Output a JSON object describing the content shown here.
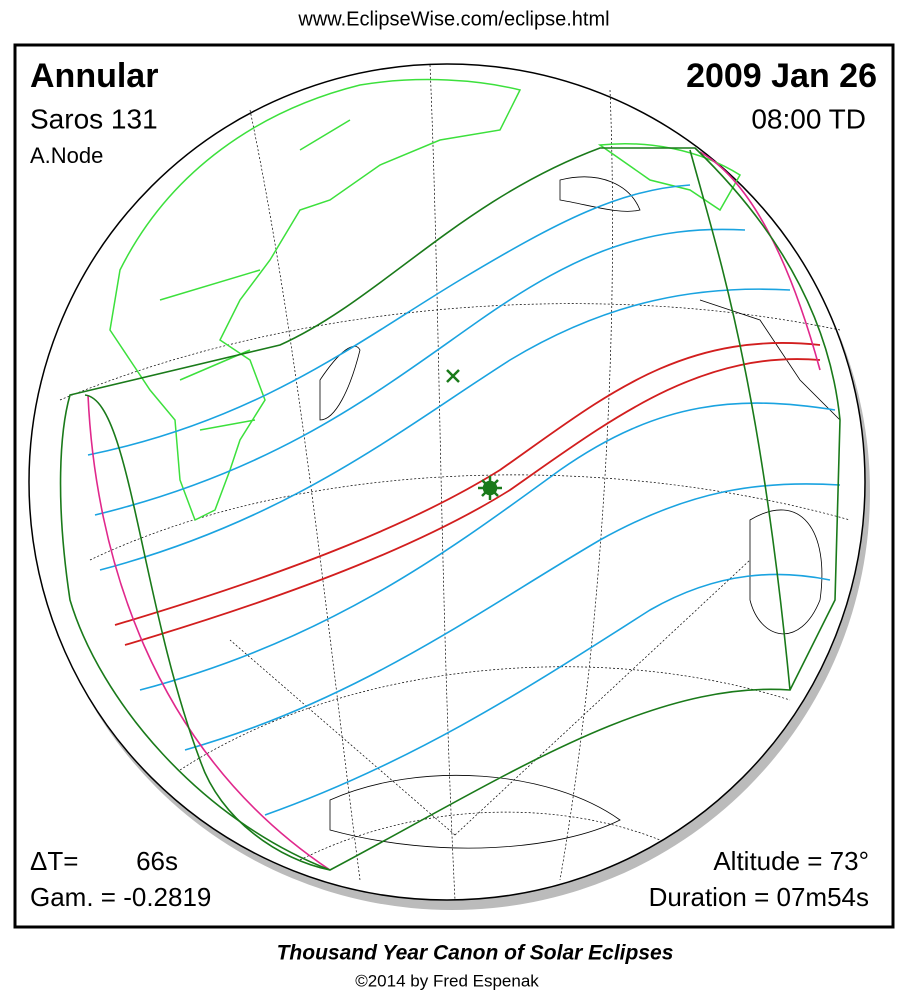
{
  "header": {
    "url": "www.EclipseWise.com/eclipse.html"
  },
  "map": {
    "eclipse_type": "Annular",
    "date": "2009 Jan 26",
    "saros": "Saros 131",
    "time": "08:00 TD",
    "node": "A.Node",
    "delta_t_label": "ΔT=",
    "delta_t": "66s",
    "gamma": "Gam. = -0.2819",
    "altitude": "Altitude = 73°",
    "duration": "Duration = 07m54s"
  },
  "footer": {
    "title": "Thousand Year Canon of Solar Eclipses",
    "credit": "©2014 by Fred Espenak"
  }
}
